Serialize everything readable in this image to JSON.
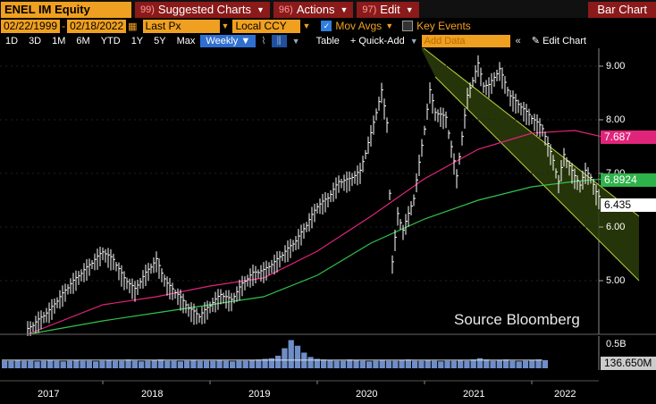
{
  "header": {
    "ticker": "ENEL IM Equity",
    "menus": [
      {
        "num": "99)",
        "label": "Suggested Charts"
      },
      {
        "num": "96)",
        "label": "Actions"
      },
      {
        "num": "97)",
        "label": "Edit"
      }
    ],
    "chart_type": "Bar Chart"
  },
  "controls": {
    "date_from": "02/22/1999",
    "date_sep": "-",
    "date_to": "02/18/2022",
    "field": "Last Px",
    "currency": "Local CCY",
    "mov_avgs_label": "Mov Avgs",
    "mov_avgs_checked": true,
    "key_events_label": "Key Events",
    "key_events_checked": false
  },
  "toolbar": {
    "periods": [
      "1D",
      "3D",
      "1M",
      "6M",
      "YTD",
      "1Y",
      "5Y",
      "Max"
    ],
    "frequency": "Weekly",
    "table_label": "Table",
    "quick_add_label": "+ Quick-Add",
    "add_data_placeholder": "Add Data",
    "edit_chart_label": "Edit Chart"
  },
  "chart_data": {
    "type": "bar",
    "y_ticks": [
      "9.00",
      "8.00",
      "7.00",
      "6.00",
      "5.00"
    ],
    "ylim": [
      4.0,
      9.4
    ],
    "x_labels": [
      "2017",
      "2018",
      "2019",
      "2020",
      "2021",
      "2022"
    ],
    "last_price": "6.435",
    "ma_red_value": "7.687",
    "ma_green_value": "6.8924",
    "volume_label": "0.5B",
    "volume_value": "136.650M",
    "source": "Source Bloomberg",
    "price_series": [
      [
        2016.8,
        4.05
      ],
      [
        2017.0,
        4.4
      ],
      [
        2017.2,
        4.9
      ],
      [
        2017.4,
        5.3
      ],
      [
        2017.5,
        5.5
      ],
      [
        2017.6,
        5.35
      ],
      [
        2017.7,
        5.0
      ],
      [
        2017.8,
        4.8
      ],
      [
        2017.9,
        5.1
      ],
      [
        2018.0,
        5.35
      ],
      [
        2018.05,
        5.1
      ],
      [
        2018.1,
        4.9
      ],
      [
        2018.2,
        4.7
      ],
      [
        2018.3,
        4.45
      ],
      [
        2018.4,
        4.3
      ],
      [
        2018.5,
        4.5
      ],
      [
        2018.6,
        4.7
      ],
      [
        2018.7,
        4.6
      ],
      [
        2018.8,
        4.9
      ],
      [
        2018.9,
        5.1
      ],
      [
        2019.0,
        5.15
      ],
      [
        2019.1,
        5.3
      ],
      [
        2019.2,
        5.5
      ],
      [
        2019.3,
        5.7
      ],
      [
        2019.4,
        6.0
      ],
      [
        2019.5,
        6.35
      ],
      [
        2019.6,
        6.5
      ],
      [
        2019.7,
        6.8
      ],
      [
        2019.8,
        6.85
      ],
      [
        2019.9,
        7.0
      ],
      [
        2020.0,
        7.7
      ],
      [
        2020.1,
        8.5
      ],
      [
        2020.15,
        7.9
      ],
      [
        2020.2,
        5.3
      ],
      [
        2020.25,
        6.2
      ],
      [
        2020.3,
        5.9
      ],
      [
        2020.4,
        6.5
      ],
      [
        2020.5,
        7.8
      ],
      [
        2020.55,
        8.5
      ],
      [
        2020.6,
        8.1
      ],
      [
        2020.7,
        8.0
      ],
      [
        2020.8,
        6.9
      ],
      [
        2020.9,
        8.4
      ],
      [
        2021.0,
        9.0
      ],
      [
        2021.05,
        8.6
      ],
      [
        2021.1,
        8.6
      ],
      [
        2021.2,
        8.9
      ],
      [
        2021.3,
        8.4
      ],
      [
        2021.4,
        8.2
      ],
      [
        2021.5,
        8.0
      ],
      [
        2021.6,
        7.8
      ],
      [
        2021.7,
        7.2
      ],
      [
        2021.75,
        6.8
      ],
      [
        2021.8,
        7.3
      ],
      [
        2021.9,
        6.9
      ],
      [
        2021.95,
        6.75
      ],
      [
        2022.0,
        7.0
      ],
      [
        2022.05,
        6.9
      ],
      [
        2022.1,
        6.6
      ],
      [
        2022.15,
        6.435
      ]
    ],
    "ma_red": [
      [
        2016.8,
        4.0
      ],
      [
        2017.5,
        4.55
      ],
      [
        2018.0,
        4.7
      ],
      [
        2018.5,
        4.9
      ],
      [
        2019.0,
        5.05
      ],
      [
        2019.5,
        5.55
      ],
      [
        2020.0,
        6.2
      ],
      [
        2020.5,
        6.9
      ],
      [
        2021.0,
        7.45
      ],
      [
        2021.5,
        7.75
      ],
      [
        2021.9,
        7.8
      ],
      [
        2022.15,
        7.687
      ]
    ],
    "ma_green": [
      [
        2016.8,
        4.0
      ],
      [
        2017.5,
        4.25
      ],
      [
        2018.0,
        4.4
      ],
      [
        2018.5,
        4.55
      ],
      [
        2019.0,
        4.7
      ],
      [
        2019.5,
        5.1
      ],
      [
        2020.0,
        5.7
      ],
      [
        2020.5,
        6.15
      ],
      [
        2021.0,
        6.5
      ],
      [
        2021.5,
        6.75
      ],
      [
        2021.9,
        6.85
      ],
      [
        2022.15,
        6.8924
      ]
    ],
    "channel": {
      "upper": [
        [
          2020.45,
          9.4
        ],
        [
          2022.5,
          6.2
        ]
      ],
      "lower": [
        [
          2020.6,
          8.8
        ],
        [
          2022.5,
          5.0
        ]
      ]
    },
    "volume_series": [
      0.12,
      0.12,
      0.13,
      0.12,
      0.12,
      0.11,
      0.12,
      0.13,
      0.12,
      0.11,
      0.12,
      0.13,
      0.12,
      0.12,
      0.11,
      0.12,
      0.13,
      0.12,
      0.12,
      0.14,
      0.12,
      0.11,
      0.12,
      0.13,
      0.14,
      0.12,
      0.12,
      0.11,
      0.12,
      0.13,
      0.12,
      0.12,
      0.12,
      0.13,
      0.12,
      0.11,
      0.12,
      0.12,
      0.13,
      0.14,
      0.15,
      0.16,
      0.2,
      0.32,
      0.45,
      0.36,
      0.25,
      0.18,
      0.15,
      0.14,
      0.13,
      0.12,
      0.12,
      0.14,
      0.13,
      0.12,
      0.11,
      0.12,
      0.13,
      0.12,
      0.12,
      0.13,
      0.14,
      0.12,
      0.12,
      0.13,
      0.12,
      0.11,
      0.12,
      0.12,
      0.13,
      0.12,
      0.14,
      0.16,
      0.14,
      0.12,
      0.13,
      0.14,
      0.12,
      0.11,
      0.12,
      0.13,
      0.14,
      0.13
    ]
  }
}
